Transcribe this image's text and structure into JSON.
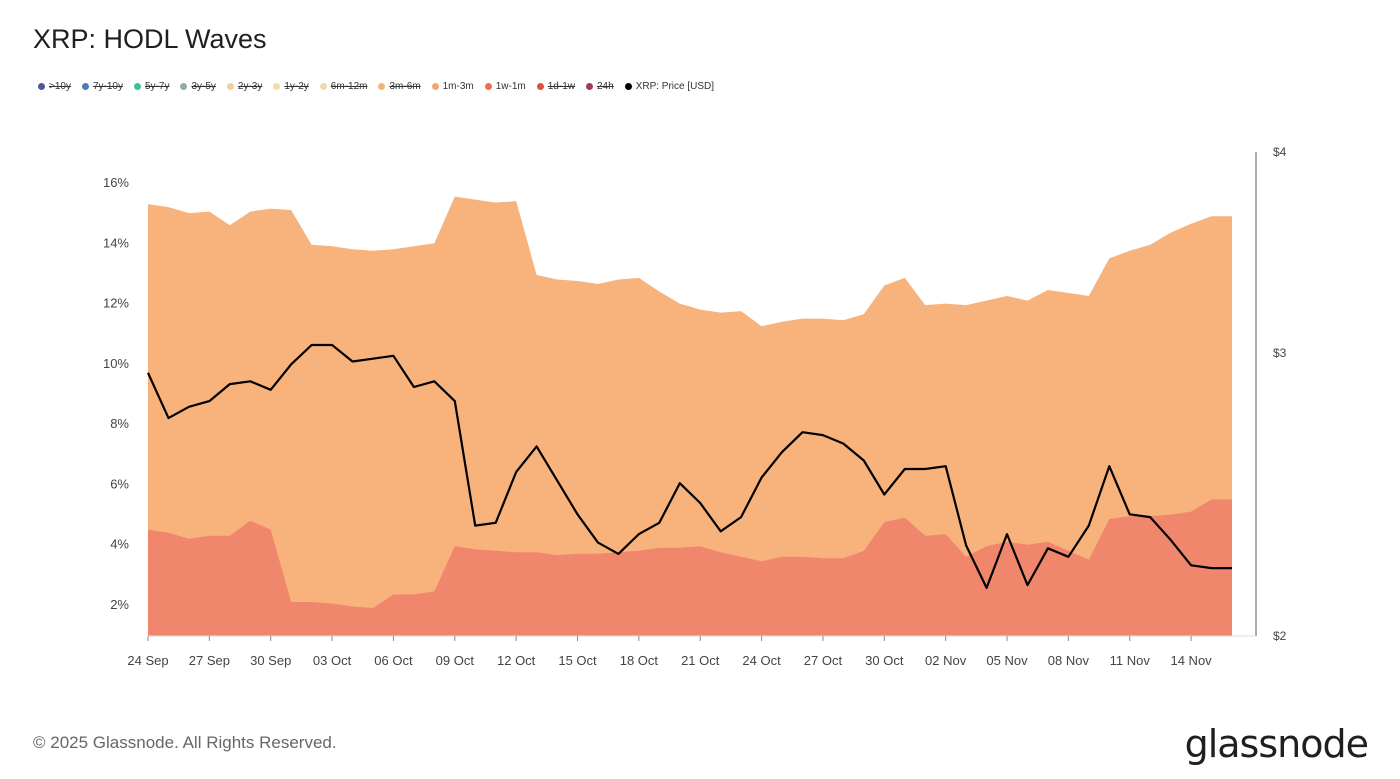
{
  "title": "XRP: HODL Waves",
  "footer": "© 2025 Glassnode. All Rights Reserved.",
  "brand": "glassnode",
  "watermark": "glassnode",
  "legend": [
    {
      "label": ">10y",
      "color": "#4b5a97",
      "active": false
    },
    {
      "label": "7y-10y",
      "color": "#4b7ab5",
      "active": false
    },
    {
      "label": "5y-7y",
      "color": "#3dbf9c",
      "active": false
    },
    {
      "label": "3y-5y",
      "color": "#8ab0a0",
      "active": false
    },
    {
      "label": "2y-3y",
      "color": "#f0cfa0",
      "active": false
    },
    {
      "label": "1y-2y",
      "color": "#f7dca8",
      "active": false
    },
    {
      "label": "6m-12m",
      "color": "#f4d8a9",
      "active": false
    },
    {
      "label": "3m-6m",
      "color": "#f4b57a",
      "active": false
    },
    {
      "label": "1m-3m",
      "color": "#f5a36e",
      "active": true
    },
    {
      "label": "1w-1m",
      "color": "#ec6e54",
      "active": true
    },
    {
      "label": "1d-1w",
      "color": "#d9533e",
      "active": false
    },
    {
      "label": "24h",
      "color": "#a43a52",
      "active": false
    },
    {
      "label": "XRP: Price [USD]",
      "color": "#000000",
      "active": true
    }
  ],
  "chart_data": {
    "type": "area",
    "title": "XRP: HODL Waves",
    "x_tick_labels": [
      "24 Sep",
      "27 Sep",
      "30 Sep",
      "03 Oct",
      "06 Oct",
      "09 Oct",
      "12 Oct",
      "15 Oct",
      "18 Oct",
      "21 Oct",
      "24 Oct",
      "27 Oct",
      "30 Oct",
      "02 Nov",
      "05 Nov",
      "08 Nov",
      "11 Nov",
      "14 Nov"
    ],
    "y_left_ticks": [
      "2%",
      "4%",
      "6%",
      "8%",
      "10%",
      "12%",
      "14%",
      "16%"
    ],
    "y_left_range": [
      1,
      17
    ],
    "y_right_ticks": [
      "$2",
      "$3",
      "$4"
    ],
    "y_right_range": [
      2,
      4
    ],
    "grid": false,
    "legend_position": "top-left",
    "x": [
      "24 Sep",
      "25 Sep",
      "26 Sep",
      "27 Sep",
      "28 Sep",
      "29 Sep",
      "30 Sep",
      "01 Oct",
      "02 Oct",
      "03 Oct",
      "04 Oct",
      "05 Oct",
      "06 Oct",
      "07 Oct",
      "08 Oct",
      "09 Oct",
      "10 Oct",
      "11 Oct",
      "12 Oct",
      "13 Oct",
      "14 Oct",
      "15 Oct",
      "16 Oct",
      "17 Oct",
      "18 Oct",
      "19 Oct",
      "20 Oct",
      "21 Oct",
      "22 Oct",
      "23 Oct",
      "24 Oct",
      "25 Oct",
      "26 Oct",
      "27 Oct",
      "28 Oct",
      "29 Oct",
      "30 Oct",
      "31 Oct",
      "01 Nov",
      "02 Nov",
      "03 Nov",
      "04 Nov",
      "05 Nov",
      "06 Nov",
      "07 Nov",
      "08 Nov",
      "09 Nov",
      "10 Nov",
      "11 Nov",
      "12 Nov",
      "13 Nov",
      "14 Nov",
      "15 Nov",
      "16 Nov"
    ],
    "series": [
      {
        "name": "1w-1m",
        "color": "#f0876c",
        "axis": "left",
        "values": [
          4.5,
          4.4,
          4.2,
          4.3,
          4.3,
          4.8,
          4.5,
          2.1,
          2.1,
          2.05,
          1.95,
          1.9,
          2.35,
          2.35,
          2.45,
          3.95,
          3.85,
          3.8,
          3.75,
          3.75,
          3.65,
          3.7,
          3.7,
          3.75,
          3.8,
          3.9,
          3.9,
          3.95,
          3.75,
          3.6,
          3.45,
          3.6,
          3.6,
          3.55,
          3.55,
          3.8,
          4.75,
          4.9,
          4.3,
          4.35,
          3.6,
          3.95,
          4.1,
          4.0,
          4.1,
          3.8,
          3.5,
          4.85,
          4.95,
          4.95,
          5.0,
          5.1,
          5.5,
          5.5
        ]
      },
      {
        "name": "1m-3m",
        "color": "#f8b27c",
        "axis": "left",
        "values": [
          15.3,
          15.2,
          15.0,
          15.05,
          14.6,
          15.05,
          15.15,
          15.1,
          13.95,
          13.9,
          13.8,
          13.75,
          13.8,
          13.9,
          14.0,
          15.55,
          15.45,
          15.35,
          15.4,
          12.95,
          12.8,
          12.75,
          12.65,
          12.8,
          12.85,
          12.4,
          12.0,
          11.8,
          11.7,
          11.75,
          11.25,
          11.4,
          11.5,
          11.5,
          11.45,
          11.65,
          12.6,
          12.85,
          11.95,
          12.0,
          11.95,
          12.1,
          12.25,
          12.1,
          12.45,
          12.35,
          12.25,
          13.5,
          13.75,
          13.95,
          14.35,
          14.65,
          14.9,
          14.9
        ]
      },
      {
        "name": "XRP: Price [USD]",
        "color": "#000000",
        "axis": "right",
        "values": [
          2.93,
          2.77,
          2.81,
          2.83,
          2.89,
          2.9,
          2.87,
          2.96,
          3.04,
          3.04,
          2.97,
          2.98,
          2.99,
          2.88,
          2.9,
          2.83,
          2.39,
          2.4,
          2.58,
          2.67,
          2.55,
          2.43,
          2.33,
          2.29,
          2.36,
          2.4,
          2.54,
          2.47,
          2.37,
          2.42,
          2.56,
          2.65,
          2.72,
          2.71,
          2.68,
          2.62,
          2.5,
          2.59,
          2.59,
          2.6,
          2.32,
          2.17,
          2.36,
          2.18,
          2.31,
          2.28,
          2.39,
          2.6,
          2.43,
          2.42,
          2.34,
          2.25,
          2.24,
          2.24
        ]
      }
    ]
  }
}
